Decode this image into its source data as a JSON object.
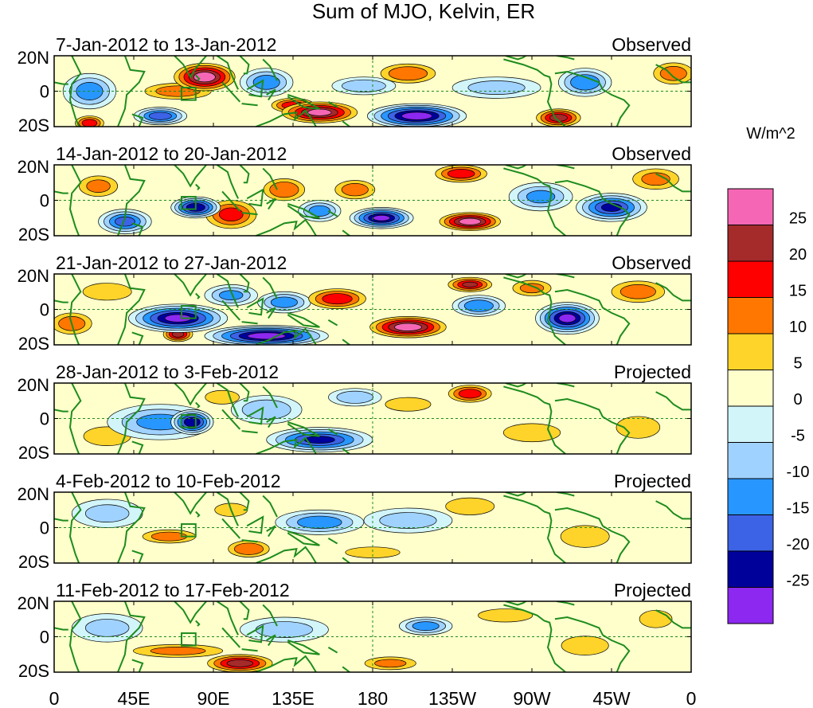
{
  "chart_data": {
    "type": "heatmap",
    "title": "Sum of MJO, Kelvin, ER",
    "units_label": "W/m^2",
    "x_ticks": [
      "0",
      "45E",
      "90E",
      "135E",
      "180",
      "135W",
      "90W",
      "45W",
      "0"
    ],
    "y_ticks": [
      "20N",
      "0",
      "20S"
    ],
    "x_range_deg": [
      0,
      360
    ],
    "y_range_deg": [
      -20,
      20
    ],
    "colorbar": {
      "labels": [
        "25",
        "20",
        "15",
        "10",
        "5",
        "0",
        "-5",
        "-10",
        "-15",
        "-20",
        "-25"
      ],
      "levels": [
        25,
        20,
        15,
        10,
        5,
        0,
        -5,
        -10,
        -15,
        -20,
        -25
      ],
      "colors": [
        "#f567b4",
        "#a52a2a",
        "#ff0000",
        "#ff7700",
        "#ffd42a",
        "#ffffcc",
        "#d2f5fa",
        "#a0d2ff",
        "#2896ff",
        "#3c63e6",
        "#00009b",
        "#8c28f0"
      ]
    },
    "panels": [
      {
        "label": "7-Jan-2012 to 13-Jan-2012",
        "status": "Observed",
        "blobs": [
          {
            "lon": 85,
            "lat": 8,
            "rlon": 20,
            "rlat": 9,
            "value": 28
          },
          {
            "lon": 70,
            "lat": 0,
            "rlon": 25,
            "rlat": 6,
            "value": 12
          },
          {
            "lon": 150,
            "lat": -12,
            "rlon": 25,
            "rlat": 7,
            "value": 26
          },
          {
            "lon": 135,
            "lat": -8,
            "rlon": 15,
            "rlat": 5,
            "value": 18
          },
          {
            "lon": 205,
            "lat": -14,
            "rlon": 28,
            "rlat": 7,
            "value": -28
          },
          {
            "lon": 200,
            "lat": 10,
            "rlon": 20,
            "rlat": 7,
            "value": 14
          },
          {
            "lon": 285,
            "lat": -15,
            "rlon": 15,
            "rlat": 6,
            "value": 22
          },
          {
            "lon": 300,
            "lat": 5,
            "rlon": 15,
            "rlat": 8,
            "value": -14
          },
          {
            "lon": 20,
            "lat": 0,
            "rlon": 15,
            "rlat": 10,
            "value": -12
          },
          {
            "lon": 20,
            "lat": -18,
            "rlon": 10,
            "rlat": 5,
            "value": 18
          },
          {
            "lon": 120,
            "lat": 5,
            "rlon": 15,
            "rlat": 8,
            "value": -12
          },
          {
            "lon": 60,
            "lat": -14,
            "rlon": 15,
            "rlat": 5,
            "value": -18
          },
          {
            "lon": 350,
            "lat": 10,
            "rlon": 15,
            "rlat": 8,
            "value": 12
          },
          {
            "lon": 250,
            "lat": 2,
            "rlon": 25,
            "rlat": 6,
            "value": -6
          },
          {
            "lon": 175,
            "lat": 3,
            "rlon": 18,
            "rlat": 5,
            "value": -8
          }
        ]
      },
      {
        "label": "14-Jan-2012 to 20-Jan-2012",
        "status": "Observed",
        "blobs": [
          {
            "lon": 80,
            "lat": -4,
            "rlon": 14,
            "rlat": 6,
            "value": -24
          },
          {
            "lon": 100,
            "lat": -8,
            "rlon": 18,
            "rlat": 10,
            "value": 16
          },
          {
            "lon": 130,
            "lat": 6,
            "rlon": 15,
            "rlat": 8,
            "value": 14
          },
          {
            "lon": 185,
            "lat": -10,
            "rlon": 18,
            "rlat": 6,
            "value": -26
          },
          {
            "lon": 235,
            "lat": -12,
            "rlon": 20,
            "rlat": 6,
            "value": 28
          },
          {
            "lon": 230,
            "lat": 15,
            "rlon": 18,
            "rlat": 6,
            "value": 18
          },
          {
            "lon": 170,
            "lat": 6,
            "rlon": 15,
            "rlat": 7,
            "value": 12
          },
          {
            "lon": 315,
            "lat": -4,
            "rlon": 20,
            "rlat": 8,
            "value": -20
          },
          {
            "lon": 40,
            "lat": -12,
            "rlon": 15,
            "rlat": 7,
            "value": -16
          },
          {
            "lon": 25,
            "lat": 8,
            "rlon": 15,
            "rlat": 8,
            "value": 10
          },
          {
            "lon": 340,
            "lat": 12,
            "rlon": 18,
            "rlat": 8,
            "value": 10
          },
          {
            "lon": 150,
            "lat": -6,
            "rlon": 12,
            "rlat": 6,
            "value": -12
          },
          {
            "lon": 275,
            "lat": 2,
            "rlon": 18,
            "rlat": 8,
            "value": -10
          }
        ]
      },
      {
        "label": "21-Jan-2012 to 27-Jan-2012",
        "status": "Observed",
        "blobs": [
          {
            "lon": 70,
            "lat": -5,
            "rlon": 28,
            "rlat": 8,
            "value": -26
          },
          {
            "lon": 120,
            "lat": -15,
            "rlon": 35,
            "rlat": 6,
            "value": -28
          },
          {
            "lon": 200,
            "lat": -10,
            "rlon": 25,
            "rlat": 7,
            "value": 28
          },
          {
            "lon": 160,
            "lat": 6,
            "rlon": 20,
            "rlat": 7,
            "value": 18
          },
          {
            "lon": 235,
            "lat": 14,
            "rlon": 15,
            "rlat": 5,
            "value": 20
          },
          {
            "lon": 290,
            "lat": -5,
            "rlon": 18,
            "rlat": 9,
            "value": -26
          },
          {
            "lon": 240,
            "lat": 2,
            "rlon": 15,
            "rlat": 6,
            "value": -14
          },
          {
            "lon": 70,
            "lat": -14,
            "rlon": 10,
            "rlat": 5,
            "value": 22
          },
          {
            "lon": 10,
            "lat": -8,
            "rlon": 15,
            "rlat": 8,
            "value": 12
          },
          {
            "lon": 30,
            "lat": 10,
            "rlon": 20,
            "rlat": 7,
            "value": 8
          },
          {
            "lon": 130,
            "lat": 4,
            "rlon": 15,
            "rlat": 6,
            "value": -12
          },
          {
            "lon": 330,
            "lat": 10,
            "rlon": 20,
            "rlat": 8,
            "value": 12
          },
          {
            "lon": 270,
            "lat": 12,
            "rlon": 15,
            "rlat": 6,
            "value": 10
          },
          {
            "lon": 100,
            "lat": 8,
            "rlon": 15,
            "rlat": 6,
            "value": -10
          }
        ]
      },
      {
        "label": "28-Jan-2012 to 3-Feb-2012",
        "status": "Projected",
        "blobs": [
          {
            "lon": 78,
            "lat": -2,
            "rlon": 12,
            "rlat": 7,
            "value": -24
          },
          {
            "lon": 60,
            "lat": -2,
            "rlon": 30,
            "rlat": 10,
            "value": -10
          },
          {
            "lon": 150,
            "lat": -12,
            "rlon": 30,
            "rlat": 7,
            "value": -20
          },
          {
            "lon": 120,
            "lat": 5,
            "rlon": 20,
            "rlat": 8,
            "value": -8
          },
          {
            "lon": 235,
            "lat": 14,
            "rlon": 15,
            "rlat": 6,
            "value": 18
          },
          {
            "lon": 200,
            "lat": 8,
            "rlon": 20,
            "rlat": 6,
            "value": 6
          },
          {
            "lon": 270,
            "lat": -8,
            "rlon": 25,
            "rlat": 8,
            "value": 6
          },
          {
            "lon": 30,
            "lat": -10,
            "rlon": 20,
            "rlat": 8,
            "value": 7
          },
          {
            "lon": 330,
            "lat": -5,
            "rlon": 20,
            "rlat": 10,
            "value": 5
          },
          {
            "lon": 170,
            "lat": 12,
            "rlon": 15,
            "rlat": 5,
            "value": -8
          },
          {
            "lon": 95,
            "lat": 12,
            "rlon": 15,
            "rlat": 6,
            "value": 6
          }
        ]
      },
      {
        "label": "4-Feb-2012 to 10-Feb-2012",
        "status": "Projected",
        "blobs": [
          {
            "lon": 110,
            "lat": -12,
            "rlon": 15,
            "rlat": 6,
            "value": 14
          },
          {
            "lon": 65,
            "lat": -5,
            "rlon": 20,
            "rlat": 5,
            "value": 12
          },
          {
            "lon": 150,
            "lat": 3,
            "rlon": 25,
            "rlat": 7,
            "value": -12
          },
          {
            "lon": 235,
            "lat": 12,
            "rlon": 20,
            "rlat": 7,
            "value": 8
          },
          {
            "lon": 300,
            "lat": -5,
            "rlon": 20,
            "rlat": 9,
            "value": 8
          },
          {
            "lon": 200,
            "lat": 4,
            "rlon": 25,
            "rlat": 7,
            "value": -6
          },
          {
            "lon": 30,
            "lat": 8,
            "rlon": 20,
            "rlat": 8,
            "value": -5
          },
          {
            "lon": 180,
            "lat": -14,
            "rlon": 25,
            "rlat": 5,
            "value": 5
          },
          {
            "lon": 100,
            "lat": 10,
            "rlon": 15,
            "rlat": 6,
            "value": 5
          }
        ]
      },
      {
        "label": "11-Feb-2012 to 17-Feb-2012",
        "status": "Projected",
        "blobs": [
          {
            "lon": 105,
            "lat": -15,
            "rlon": 22,
            "rlat": 6,
            "value": 22
          },
          {
            "lon": 70,
            "lat": -8,
            "rlon": 35,
            "rlat": 5,
            "value": 10
          },
          {
            "lon": 210,
            "lat": 6,
            "rlon": 15,
            "rlat": 5,
            "value": -12
          },
          {
            "lon": 190,
            "lat": -15,
            "rlon": 20,
            "rlat": 5,
            "value": 10
          },
          {
            "lon": 300,
            "lat": -5,
            "rlon": 20,
            "rlat": 8,
            "value": 7
          },
          {
            "lon": 130,
            "lat": 4,
            "rlon": 25,
            "rlat": 7,
            "value": -6
          },
          {
            "lon": 255,
            "lat": 12,
            "rlon": 25,
            "rlat": 6,
            "value": 5
          },
          {
            "lon": 30,
            "lat": 5,
            "rlon": 20,
            "rlat": 8,
            "value": -5
          },
          {
            "lon": 340,
            "lat": 10,
            "rlon": 15,
            "rlat": 8,
            "value": 5
          }
        ]
      }
    ]
  }
}
